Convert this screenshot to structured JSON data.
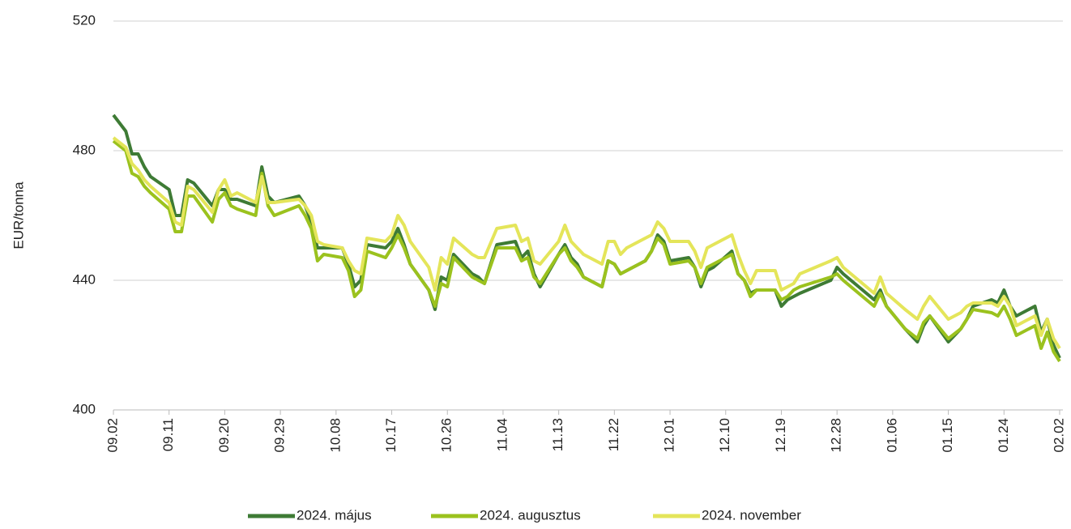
{
  "chart_data": {
    "type": "line",
    "y_label": "EUR/tonna",
    "x": [
      "09.02",
      "09.04",
      "09.05",
      "09.06",
      "09.07",
      "09.08",
      "09.11",
      "09.12",
      "09.13",
      "09.14",
      "09.15",
      "09.18",
      "09.19",
      "09.20",
      "09.21",
      "09.22",
      "09.25",
      "09.26",
      "09.27",
      "09.28",
      "10.02",
      "10.03",
      "10.04",
      "10.05",
      "10.06",
      "10.09",
      "10.10",
      "10.11",
      "10.12",
      "10.13",
      "10.16",
      "10.17",
      "10.18",
      "10.19",
      "10.20",
      "10.23",
      "10.24",
      "10.25",
      "10.26",
      "10.27",
      "10.30",
      "10.31",
      "11.01",
      "11.03",
      "11.06",
      "11.07",
      "11.08",
      "11.09",
      "11.10",
      "11.13",
      "11.14",
      "11.15",
      "11.16",
      "11.17",
      "11.20",
      "11.21",
      "11.22",
      "11.23",
      "11.24",
      "11.27",
      "11.28",
      "11.29",
      "11.30",
      "12.01",
      "12.04",
      "12.05",
      "12.06",
      "12.07",
      "12.08",
      "12.11",
      "12.12",
      "12.13",
      "12.14",
      "12.15",
      "12.18",
      "12.19",
      "12.20",
      "12.21",
      "12.22",
      "12.27",
      "12.28",
      "12.29",
      "01.03",
      "01.04",
      "01.05",
      "01.08",
      "01.10",
      "01.11",
      "01.12",
      "01.15",
      "01.17",
      "01.18",
      "01.19",
      "01.22",
      "01.23",
      "01.24",
      "01.25",
      "01.26",
      "01.29",
      "01.30",
      "01.31",
      "02.01",
      "02.02"
    ],
    "xticks": [
      "09.02",
      "09.11",
      "09.20",
      "09.29",
      "10.08",
      "10.17",
      "10.26",
      "11.04",
      "11.13",
      "11.22",
      "12.01",
      "12.10",
      "12.19",
      "12.28",
      "01.06",
      "01.15",
      "01.24",
      "02.02"
    ],
    "ylim": [
      400,
      520
    ],
    "yticks": [
      400,
      440,
      480,
      520
    ],
    "grid": true,
    "legend": "bottom",
    "series": [
      {
        "name": "2024. május",
        "color": "#3e7b35",
        "values": [
          491,
          486,
          479,
          479,
          475,
          472,
          468,
          460,
          460,
          471,
          470,
          463,
          468,
          468,
          465,
          465,
          463,
          475,
          466,
          464,
          466,
          463,
          458,
          450,
          450,
          450,
          445,
          438,
          440,
          451,
          450,
          452,
          456,
          451,
          445,
          437,
          431,
          441,
          440,
          448,
          442,
          441,
          439,
          451,
          452,
          447,
          449,
          442,
          438,
          448,
          451,
          447,
          445,
          441,
          438,
          446,
          445,
          442,
          443,
          446,
          449,
          454,
          452,
          446,
          447,
          444,
          438,
          443,
          444,
          449,
          442,
          440,
          436,
          437,
          437,
          432,
          434,
          435,
          436,
          440,
          444,
          442,
          434,
          437,
          432,
          425,
          421,
          426,
          429,
          421,
          425,
          428,
          432,
          434,
          433,
          437,
          432,
          429,
          432,
          424,
          428,
          420,
          416
        ]
      },
      {
        "name": "2024. augusztus",
        "color": "#9bc21e",
        "values": [
          483,
          480,
          473,
          472,
          469,
          467,
          462,
          455,
          455,
          466,
          466,
          458,
          465,
          467,
          463,
          462,
          460,
          473,
          463,
          460,
          463,
          460,
          456,
          446,
          448,
          447,
          443,
          435,
          437,
          449,
          447,
          450,
          454,
          450,
          445,
          437,
          432,
          439,
          438,
          447,
          441,
          440,
          439,
          450,
          450,
          446,
          447,
          441,
          439,
          448,
          450,
          446,
          444,
          441,
          438,
          446,
          445,
          442,
          443,
          446,
          449,
          453,
          451,
          445,
          446,
          444,
          439,
          444,
          445,
          448,
          442,
          440,
          435,
          437,
          437,
          434,
          435,
          437,
          438,
          441,
          442,
          440,
          432,
          436,
          432,
          425,
          422,
          427,
          429,
          422,
          425,
          428,
          431,
          430,
          429,
          432,
          428,
          423,
          426,
          419,
          424,
          418,
          415
        ]
      },
      {
        "name": "2024. november",
        "color": "#e4e55a",
        "values": [
          484,
          481,
          476,
          474,
          471,
          469,
          464,
          458,
          457,
          469,
          468,
          461,
          468,
          471,
          466,
          467,
          464,
          472,
          464,
          464,
          465,
          463,
          460,
          452,
          451,
          450,
          446,
          443,
          442,
          453,
          452,
          454,
          460,
          457,
          452,
          444,
          437,
          447,
          445,
          453,
          448,
          447,
          447,
          456,
          457,
          452,
          453,
          446,
          445,
          452,
          457,
          452,
          450,
          448,
          445,
          452,
          452,
          448,
          450,
          453,
          454,
          458,
          456,
          452,
          452,
          449,
          444,
          450,
          451,
          454,
          448,
          443,
          439,
          443,
          443,
          437,
          438,
          439,
          442,
          446,
          447,
          444,
          436,
          441,
          436,
          431,
          428,
          432,
          435,
          428,
          430,
          432,
          433,
          433,
          432,
          435,
          432,
          426,
          429,
          423,
          428,
          422,
          419
        ]
      }
    ]
  }
}
